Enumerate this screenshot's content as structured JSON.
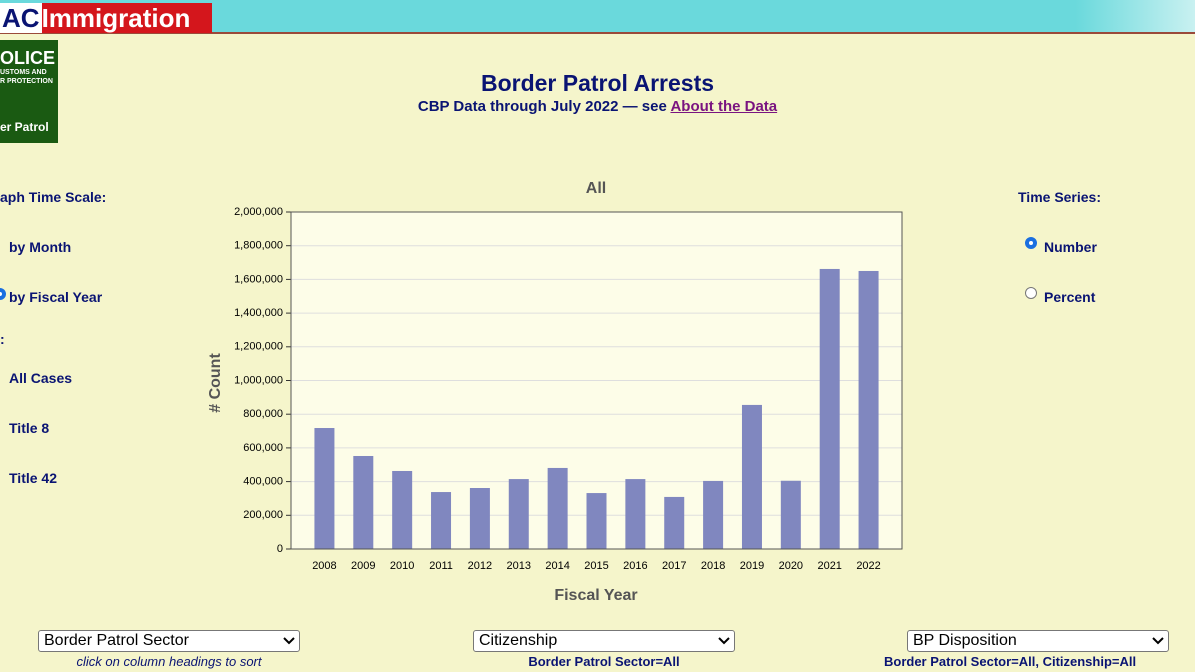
{
  "header": {
    "brand_prefix": "AC",
    "brand": "Immigration"
  },
  "logo": {
    "lines": [
      "OLICE",
      "USTOMS AND",
      "R PROTECTION"
    ],
    "caption": "er Patrol"
  },
  "title": "Border Patrol Arrests",
  "subtitle": "CBP Data through July 2022 — see",
  "subtitle_link": "About the Data",
  "left_panel": {
    "heading": "aph Time Scale:",
    "options": [
      "by Month",
      "by Fiscal Year"
    ],
    "heading2": ":",
    "options2": [
      "All Cases",
      "Title 8",
      "Title 42"
    ]
  },
  "right_panel": {
    "heading": "Time Series:",
    "options": [
      "Number",
      "Percent"
    ]
  },
  "chart_data": {
    "type": "bar",
    "title": "All",
    "x_label": "Fiscal Year",
    "y_label": "# Count",
    "categories": [
      "2008",
      "2009",
      "2010",
      "2011",
      "2012",
      "2013",
      "2014",
      "2015",
      "2016",
      "2017",
      "2018",
      "2019",
      "2020",
      "2021",
      "2022"
    ],
    "values": [
      718000,
      552000,
      463000,
      338000,
      362000,
      415000,
      481000,
      332000,
      415000,
      309000,
      404000,
      855000,
      405000,
      1662000,
      1650000
    ],
    "color": "#8087bf",
    "ylim": [
      0,
      2000000
    ],
    "yticks": [
      0,
      {
        "value": 200000,
        "label": "200,000"
      },
      {
        "value": 400000,
        "label": "400,000"
      },
      {
        "value": 600000,
        "label": "600,000"
      },
      {
        "value": 800000,
        "label": "800,000"
      },
      {
        "value": 1000000,
        "label": "1,000,000"
      },
      {
        "value": 1200000,
        "label": "1,200,000"
      },
      {
        "value": 1400000,
        "label": "1,400,000"
      },
      {
        "value": 1600000,
        "label": "1,600,000"
      },
      {
        "value": 1800000,
        "label": "1,800,000"
      },
      {
        "value": 2000000,
        "label": "2,000,000"
      }
    ],
    "grid": true
  },
  "tables": [
    {
      "select": "Border Patrol Sector",
      "note": "click on column headings to sort"
    },
    {
      "select": "Citizenship",
      "note": "Border Patrol Sector=All"
    },
    {
      "select": "BP Disposition",
      "note": "Border Patrol Sector=All, Citizenship=All"
    }
  ]
}
